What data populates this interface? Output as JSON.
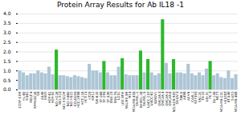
{
  "chart_data": {
    "type": "bar",
    "title": "Protein Array Results for Ab IL18 -1",
    "categories": [
      "CCRF-CEM",
      "HL-60",
      "K-562",
      "MOLT-4",
      "RPMI-8226",
      "SR",
      "A549",
      "EKVX",
      "HOP-62",
      "HOP-92",
      "NCI-H226",
      "NCI-H23",
      "NCI-H322M",
      "NCI-H460",
      "NCI-H522",
      "COLO205",
      "HCC-2998",
      "HCT-116",
      "HCT-15",
      "HT29",
      "KM12",
      "SW-620",
      "SF-268",
      "SF-295",
      "SF-539",
      "SNB-19",
      "SNB-75",
      "U251",
      "LOX IMVI",
      "MALME-3M",
      "M14",
      "MDA-MB-435",
      "SK-MEL-2",
      "SK-MEL-28",
      "SK-MEL-5",
      "UACC-257",
      "UACC-62",
      "IGROV1",
      "OVCAR-3",
      "OVCAR-4",
      "OVCAR-5",
      "OVCAR-8",
      "NCI/ADR-RES",
      "SK-OV-3",
      "786-0",
      "A498",
      "ACHN",
      "CAKI-1",
      "RXF393",
      "SN12C",
      "TK-10",
      "UO-31",
      "PC-3",
      "DU-145",
      "MCF7",
      "MDA-MB-231",
      "HS578T",
      "BT-549",
      "T-47D",
      "MDA-MB-468"
    ],
    "values": [
      1.0,
      0.9,
      0.75,
      0.85,
      0.85,
      1.0,
      0.9,
      0.85,
      1.2,
      0.8,
      2.1,
      0.75,
      0.75,
      0.7,
      0.65,
      0.75,
      0.7,
      0.65,
      0.6,
      1.35,
      1.0,
      1.0,
      0.9,
      1.5,
      0.9,
      0.75,
      0.75,
      1.2,
      1.65,
      0.8,
      0.75,
      0.75,
      0.75,
      2.05,
      0.9,
      1.6,
      0.9,
      0.75,
      0.85,
      3.7,
      1.4,
      0.85,
      1.6,
      0.9,
      0.9,
      0.85,
      1.35,
      0.85,
      0.75,
      0.9,
      0.75,
      1.1,
      1.5,
      0.75,
      0.85,
      0.65,
      0.6,
      1.0,
      0.6,
      0.8
    ],
    "colors": [
      "#adc6d6",
      "#adc6d6",
      "#adc6d6",
      "#adc6d6",
      "#adc6d6",
      "#adc6d6",
      "#adc6d6",
      "#adc6d6",
      "#adc6d6",
      "#adc6d6",
      "#2db82b",
      "#adc6d6",
      "#adc6d6",
      "#adc6d6",
      "#adc6d6",
      "#adc6d6",
      "#adc6d6",
      "#adc6d6",
      "#adc6d6",
      "#adc6d6",
      "#adc6d6",
      "#adc6d6",
      "#adc6d6",
      "#2db82b",
      "#adc6d6",
      "#adc6d6",
      "#adc6d6",
      "#adc6d6",
      "#2db82b",
      "#adc6d6",
      "#adc6d6",
      "#adc6d6",
      "#adc6d6",
      "#2db82b",
      "#adc6d6",
      "#2db82b",
      "#adc6d6",
      "#adc6d6",
      "#adc6d6",
      "#2db82b",
      "#adc6d6",
      "#adc6d6",
      "#2db82b",
      "#adc6d6",
      "#adc6d6",
      "#adc6d6",
      "#adc6d6",
      "#adc6d6",
      "#adc6d6",
      "#adc6d6",
      "#adc6d6",
      "#adc6d6",
      "#2db82b",
      "#adc6d6",
      "#adc6d6",
      "#adc6d6",
      "#adc6d6",
      "#adc6d6",
      "#adc6d6",
      "#adc6d6"
    ],
    "ylim": [
      0.0,
      4.0
    ],
    "yticks": [
      {
        "value": 0.0,
        "label": "0.0"
      },
      0.5,
      {
        "value": 1.0,
        "label": "1.0"
      },
      1.5,
      {
        "value": 2.0,
        "label": "2.0"
      },
      2.5,
      {
        "value": 3.0,
        "label": "3.0"
      },
      3.5,
      {
        "value": 4.0,
        "label": "4.0"
      }
    ],
    "grid": true
  }
}
